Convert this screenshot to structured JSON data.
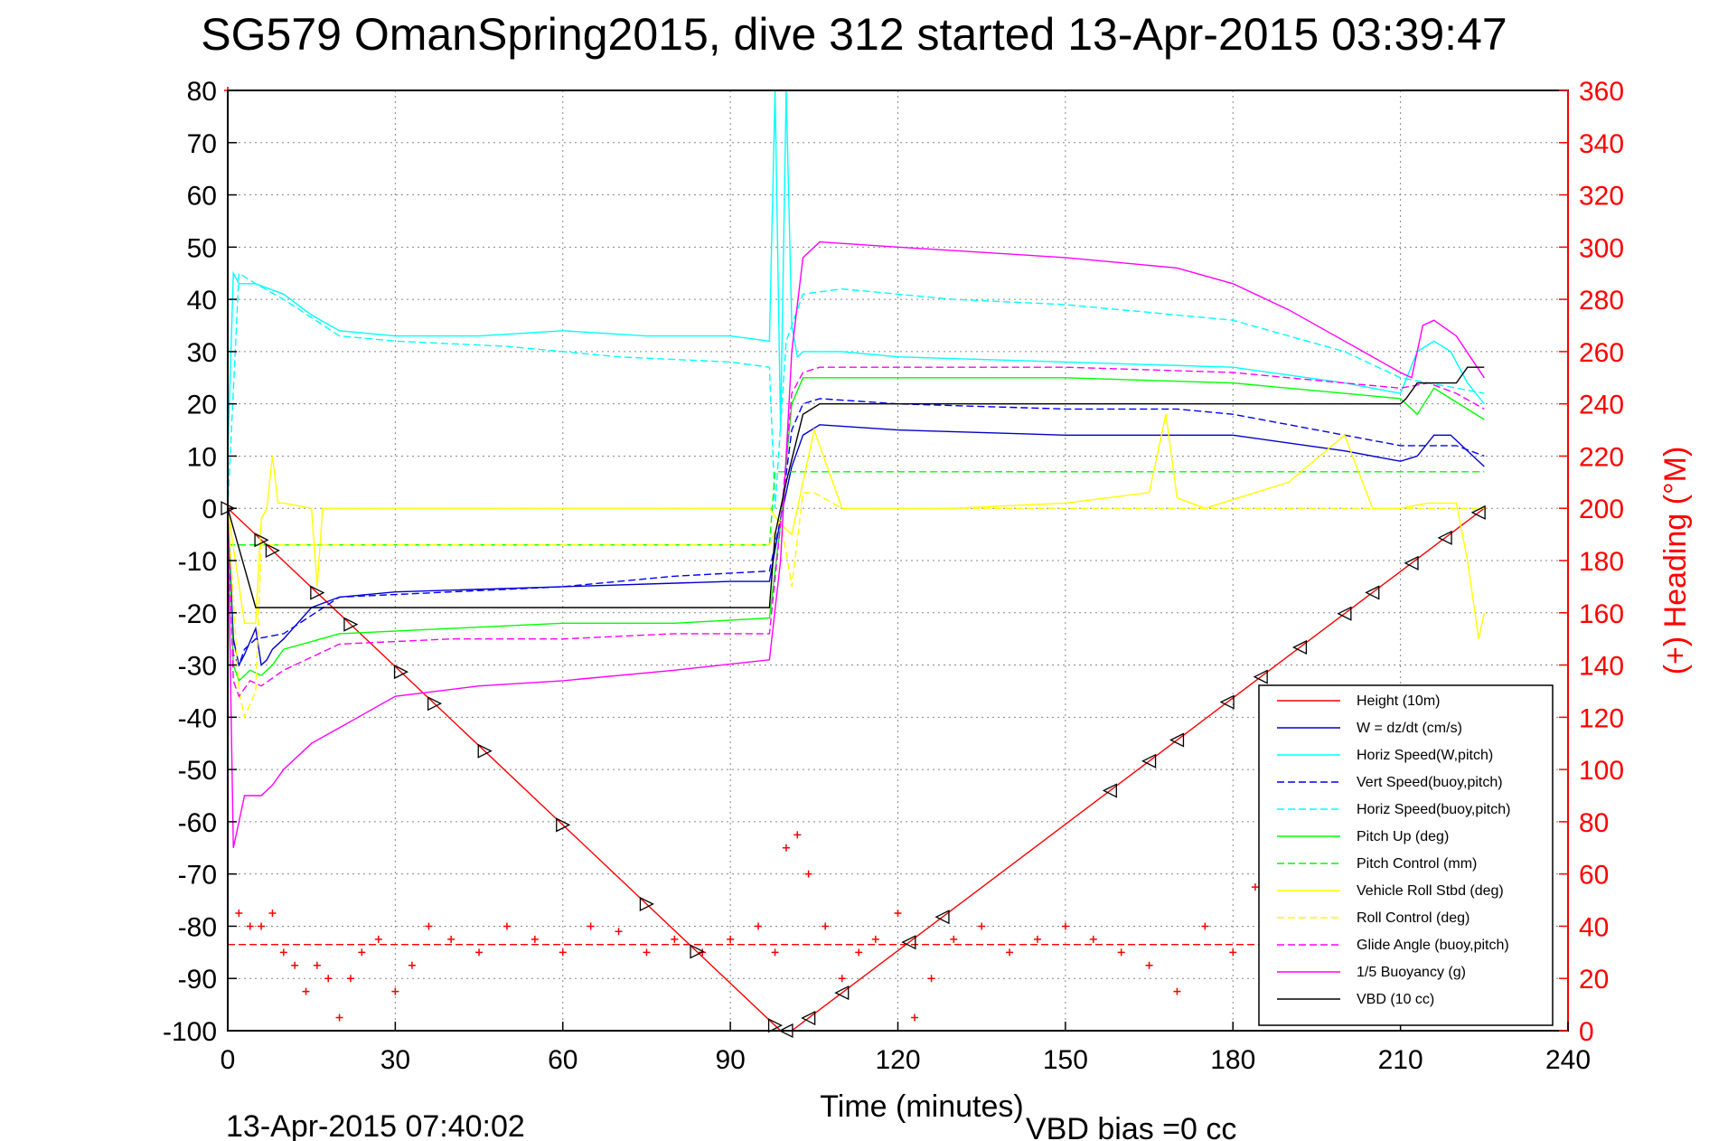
{
  "chart_data": {
    "type": "line",
    "title": "SG579 OmanSpring2015, dive 312 started 13-Apr-2015 03:39:47",
    "xlabel": "Time (minutes)",
    "ylabel": "",
    "y2label": "(+) Heading (°M)",
    "xlim": [
      0,
      240
    ],
    "ylim": [
      -100,
      80
    ],
    "y2lim": [
      0,
      360
    ],
    "x_ticks": [
      0,
      30,
      60,
      90,
      120,
      150,
      180,
      210,
      240
    ],
    "y_ticks": [
      -100,
      -90,
      -80,
      -70,
      -60,
      -50,
      -40,
      -30,
      -20,
      -10,
      0,
      10,
      20,
      30,
      40,
      50,
      60,
      70,
      80
    ],
    "y2_ticks": [
      0,
      20,
      40,
      60,
      80,
      100,
      120,
      140,
      160,
      180,
      200,
      220,
      240,
      260,
      280,
      300,
      320,
      340,
      360
    ],
    "grid": true,
    "legend_position": "bottom-right",
    "footer_left": "13-Apr-2015 07:40:02",
    "footer_right": "VBD bias =0 cc",
    "series": [
      {
        "name": "Height (10m)",
        "color": "#ff0000",
        "dash": "solid",
        "x": [
          0,
          99,
          101,
          225
        ],
        "y": [
          0,
          -100,
          -100,
          0
        ]
      },
      {
        "name": "W = dz/dt (cm/s)",
        "color": "#0000cc",
        "dash": "solid",
        "x": [
          0,
          1,
          2,
          3,
          5,
          6,
          7,
          8,
          10,
          15,
          20,
          30,
          60,
          90,
          97,
          99,
          101,
          103,
          106,
          120,
          150,
          180,
          200,
          210,
          213,
          216,
          219,
          222,
          225
        ],
        "y": [
          0,
          -25,
          -30,
          -28,
          -23,
          -30,
          -29,
          -27,
          -25,
          -19,
          -17,
          -16,
          -15,
          -14,
          -14,
          -2,
          8,
          14,
          16,
          15,
          14,
          14,
          11,
          9,
          10,
          14,
          14,
          11,
          8
        ]
      },
      {
        "name": "Horiz Speed(W,pitch)",
        "color": "#00ffff",
        "dash": "solid",
        "x": [
          0,
          1,
          2,
          5,
          10,
          15,
          20,
          30,
          45,
          60,
          75,
          90,
          97,
          98,
          99,
          100,
          101,
          102,
          103,
          105,
          110,
          120,
          150,
          180,
          200,
          210,
          213,
          216,
          219,
          222,
          225
        ],
        "y": [
          10,
          45,
          43,
          43,
          41,
          37,
          34,
          33,
          33,
          34,
          33,
          33,
          32,
          80,
          15,
          80,
          35,
          29,
          30,
          30,
          30,
          29,
          28,
          27,
          24,
          22,
          30,
          32,
          30,
          24,
          20
        ]
      },
      {
        "name": "Vert Speed(buoy,pitch)",
        "color": "#0000ff",
        "dash": "dashed",
        "x": [
          0,
          1,
          2,
          3,
          5,
          10,
          20,
          40,
          60,
          80,
          97,
          99,
          101,
          103,
          106,
          120,
          150,
          170,
          180,
          200,
          210,
          215,
          220,
          225
        ],
        "y": [
          0,
          -28,
          -30,
          -27,
          -25,
          -24,
          -17,
          -16,
          -15,
          -13,
          -12,
          -2,
          15,
          20,
          21,
          20,
          19,
          19,
          18,
          14,
          12,
          12,
          12,
          10
        ]
      },
      {
        "name": "Horiz Speed(buoy,pitch)",
        "color": "#00ffff",
        "dash": "dashed",
        "x": [
          0,
          2,
          5,
          10,
          20,
          30,
          50,
          70,
          90,
          97,
          98,
          100,
          103,
          110,
          130,
          150,
          170,
          180,
          200,
          210,
          215,
          220,
          225
        ],
        "y": [
          0,
          45,
          43,
          40,
          33,
          32,
          31,
          29,
          28,
          27,
          0,
          32,
          41,
          42,
          40,
          39,
          37,
          36,
          30,
          25,
          24,
          23,
          22
        ]
      },
      {
        "name": "Pitch Up (deg)",
        "color": "#00ff00",
        "dash": "solid",
        "x": [
          0,
          1,
          2,
          4,
          6,
          8,
          10,
          20,
          40,
          60,
          80,
          97,
          99,
          101,
          103,
          106,
          120,
          150,
          180,
          200,
          210,
          213,
          216,
          219,
          225
        ],
        "y": [
          0,
          -30,
          -33,
          -31,
          -32,
          -30,
          -27,
          -24,
          -23,
          -22,
          -22,
          -21,
          -3,
          20,
          25,
          25,
          25,
          25,
          24,
          22,
          21,
          18,
          23,
          21,
          17
        ]
      },
      {
        "name": "Pitch Control (mm)",
        "color": "#00ff00",
        "dash": "dashed",
        "x": [
          0,
          4,
          97,
          98,
          103,
          225
        ],
        "y": [
          -7,
          -7,
          -7,
          7,
          7,
          7
        ]
      },
      {
        "name": "Vehicle Roll Stbd (deg)",
        "color": "#ffff00",
        "dash": "solid",
        "x": [
          0,
          3,
          5,
          6,
          7,
          8,
          9,
          10,
          15,
          16,
          17,
          30,
          60,
          97,
          99,
          101,
          103,
          105,
          110,
          130,
          150,
          165,
          168,
          170,
          175,
          190,
          200,
          205,
          210,
          215,
          220,
          222,
          224,
          225
        ],
        "y": [
          0,
          -22,
          -22,
          -2,
          0,
          10,
          1,
          1,
          0,
          -15,
          0,
          0,
          0,
          0,
          -3,
          -5,
          5,
          15,
          0,
          0,
          1,
          3,
          18,
          2,
          0,
          5,
          14,
          0,
          0,
          1,
          1,
          -10,
          -25,
          -20
        ]
      },
      {
        "name": "Roll Control (deg)",
        "color": "#ffff00",
        "dash": "dashed",
        "x": [
          0,
          2,
          3,
          5,
          6,
          10,
          20,
          40,
          60,
          80,
          97,
          99,
          101,
          103,
          105,
          110,
          130,
          150,
          180,
          200,
          210,
          222,
          225
        ],
        "y": [
          0,
          -35,
          -40,
          -35,
          -7,
          -7,
          -7,
          -7,
          -7,
          -7,
          -7,
          -2,
          -15,
          3,
          3,
          0,
          0,
          0,
          0,
          0,
          0,
          0,
          0
        ]
      },
      {
        "name": "Glide Angle (buoy,pitch)",
        "color": "#ff00ff",
        "dash": "dashed",
        "x": [
          0,
          1,
          2,
          4,
          6,
          10,
          20,
          40,
          60,
          80,
          97,
          99,
          101,
          103,
          106,
          120,
          150,
          180,
          200,
          210,
          215,
          220,
          225
        ],
        "y": [
          0,
          -33,
          -36,
          -33,
          -34,
          -31,
          -26,
          -25,
          -25,
          -24,
          -24,
          -3,
          22,
          26,
          27,
          27,
          27,
          26,
          24,
          23,
          24,
          22,
          19
        ]
      },
      {
        "name": "1/5 Buoyancy (g)",
        "color": "#ff00ff",
        "dash": "solid",
        "x": [
          0,
          1,
          2,
          3,
          4,
          6,
          8,
          10,
          15,
          20,
          30,
          45,
          60,
          80,
          97,
          99,
          101,
          103,
          106,
          120,
          150,
          170,
          180,
          190,
          200,
          210,
          212,
          214,
          216,
          220,
          225
        ],
        "y": [
          0,
          -65,
          -60,
          -55,
          -55,
          -55,
          -53,
          -50,
          -45,
          -42,
          -36,
          -34,
          -33,
          -31,
          -29,
          -10,
          30,
          48,
          51,
          50,
          48,
          46,
          43,
          38,
          32,
          26,
          25,
          35,
          36,
          33,
          25
        ]
      },
      {
        "name": "VBD (10 cc)",
        "color": "#000000",
        "dash": "solid",
        "x": [
          0,
          5,
          10,
          20,
          40,
          60,
          80,
          97,
          98,
          100,
          103,
          106,
          120,
          150,
          180,
          210,
          211,
          213,
          216,
          220,
          222,
          224,
          225
        ],
        "y": [
          0,
          -19,
          -19,
          -19,
          -19,
          -19,
          -19,
          -19,
          -5,
          5,
          18,
          20,
          20,
          20,
          20,
          20,
          21,
          24,
          24,
          24,
          27,
          27,
          27
        ]
      },
      {
        "name": "Heading",
        "color": "#ff0000",
        "dash": "markers-plus",
        "axis": "y2",
        "x": [
          0,
          2,
          4,
          6,
          8,
          10,
          12,
          14,
          16,
          18,
          20,
          22,
          24,
          27,
          30,
          33,
          36,
          40,
          45,
          50,
          55,
          60,
          65,
          70,
          75,
          80,
          85,
          90,
          95,
          98,
          100,
          102,
          104,
          107,
          110,
          113,
          116,
          120,
          123,
          126,
          130,
          135,
          140,
          145,
          150,
          155,
          160,
          165,
          170,
          175,
          180,
          184,
          188,
          192,
          196,
          200
        ],
        "y": [
          360,
          45,
          40,
          40,
          45,
          30,
          25,
          15,
          25,
          20,
          5,
          20,
          30,
          35,
          15,
          25,
          40,
          35,
          30,
          40,
          35,
          30,
          40,
          38,
          30,
          35,
          30,
          35,
          40,
          30,
          70,
          75,
          60,
          40,
          20,
          30,
          35,
          45,
          5,
          20,
          35,
          40,
          30,
          35,
          40,
          35,
          30,
          25,
          15,
          40,
          30,
          55,
          10,
          20,
          10,
          5
        ]
      },
      {
        "name": "Heading target",
        "color": "#ff0000",
        "dash": "dashed",
        "axis": "y2",
        "x": [
          0,
          225
        ],
        "y": [
          33,
          33
        ]
      }
    ]
  }
}
